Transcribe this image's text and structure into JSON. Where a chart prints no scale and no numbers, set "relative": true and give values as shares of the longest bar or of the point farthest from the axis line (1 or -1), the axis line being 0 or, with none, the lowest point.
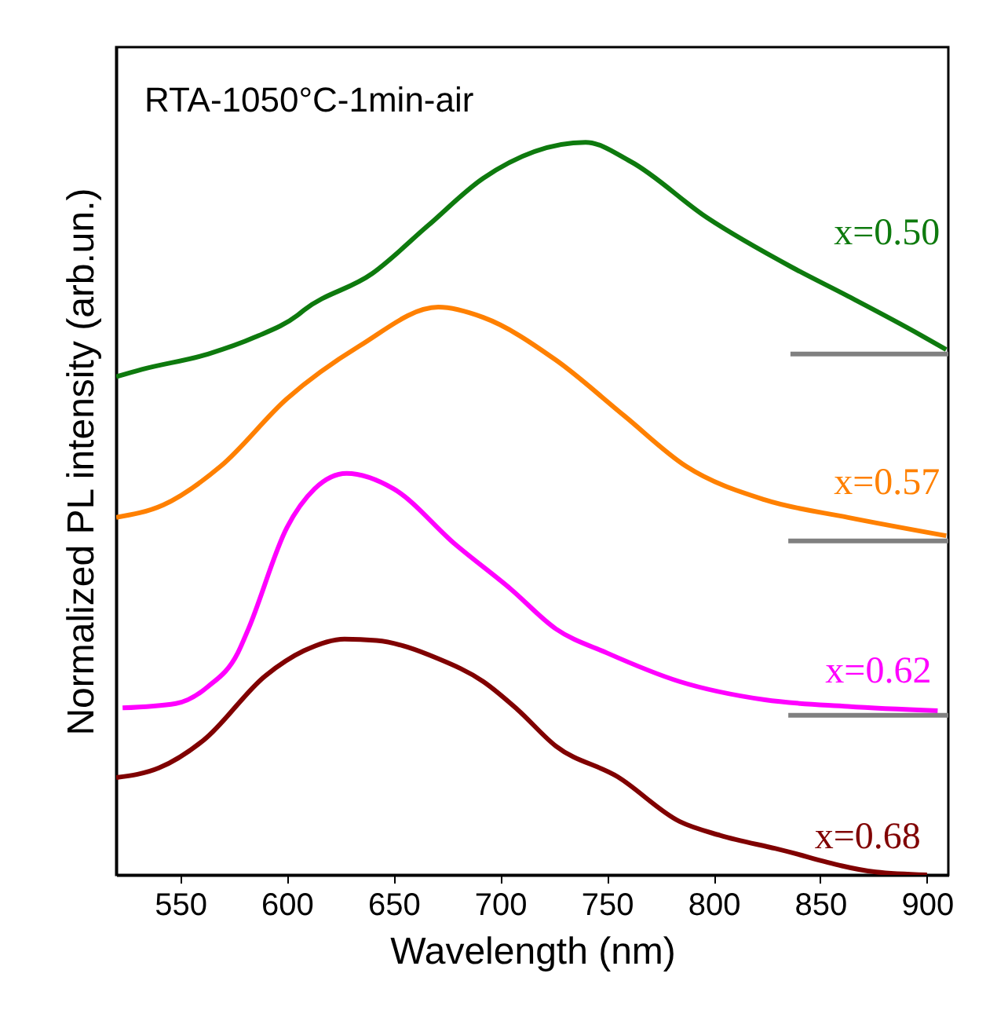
{
  "chart_data": {
    "type": "line",
    "title": "RTA-1050°C-1min-air",
    "xlabel": "Wavelength (nm)",
    "ylabel": "Normalized PL intensity (arb.un.)",
    "relative": true,
    "grid": false,
    "xlim": [
      520,
      910
    ],
    "xticks": [
      550,
      600,
      650,
      700,
      750,
      800,
      850,
      900
    ],
    "series": [
      {
        "name": "x=0.50",
        "color": "#0e7a0e",
        "x": [
          520,
          532,
          563,
          585,
          605,
          608,
          640,
          666,
          692,
          740,
          761,
          797,
          837,
          863,
          897,
          909
        ],
        "values": [
          0.68,
          0.69,
          0.711,
          0.734,
          0.764,
          0.771,
          0.821,
          0.886,
          0.951,
          1.0,
          0.974,
          0.897,
          0.829,
          0.79,
          0.737,
          0.717
        ]
      },
      {
        "name": "x=0.57",
        "color": "#ff8000",
        "x": [
          520,
          542,
          569,
          600,
          634,
          671,
          692,
          726,
          758,
          787,
          824,
          863,
          909
        ],
        "values": [
          0.488,
          0.505,
          0.558,
          0.65,
          0.722,
          0.775,
          0.761,
          0.703,
          0.627,
          0.558,
          0.512,
          0.488,
          0.463
        ]
      },
      {
        "name": "x=0.62",
        "color": "#ff00ff",
        "x": [
          523,
          548,
          563,
          577,
          582,
          600,
          613,
          628,
          650,
          679,
          705,
          726,
          750,
          784,
          824,
          863,
          905
        ],
        "values": [
          0.228,
          0.234,
          0.257,
          0.303,
          0.336,
          0.474,
          0.527,
          0.548,
          0.527,
          0.451,
          0.39,
          0.336,
          0.303,
          0.264,
          0.239,
          0.23,
          0.224
        ]
      },
      {
        "name": "x=0.68",
        "color": "#800000",
        "x": [
          520,
          540,
          561,
          590,
          608,
          627,
          642,
          671,
          692,
          708,
          726,
          755,
          784,
          803,
          829,
          876,
          900
        ],
        "values": [
          0.133,
          0.146,
          0.184,
          0.272,
          0.306,
          0.322,
          0.32,
          0.295,
          0.264,
          0.226,
          0.176,
          0.134,
          0.073,
          0.054,
          0.036,
          0.004,
          0
        ]
      },
      {
        "color": "#808080",
        "x": [
          836,
          910
        ],
        "values": [
          0.711,
          0.711
        ]
      },
      {
        "color": "#808080",
        "x": [
          835,
          910
        ],
        "values": [
          0.456,
          0.456
        ]
      },
      {
        "color": "#808080",
        "x": [
          835,
          910
        ],
        "values": [
          0.218,
          0.218
        ]
      }
    ]
  }
}
